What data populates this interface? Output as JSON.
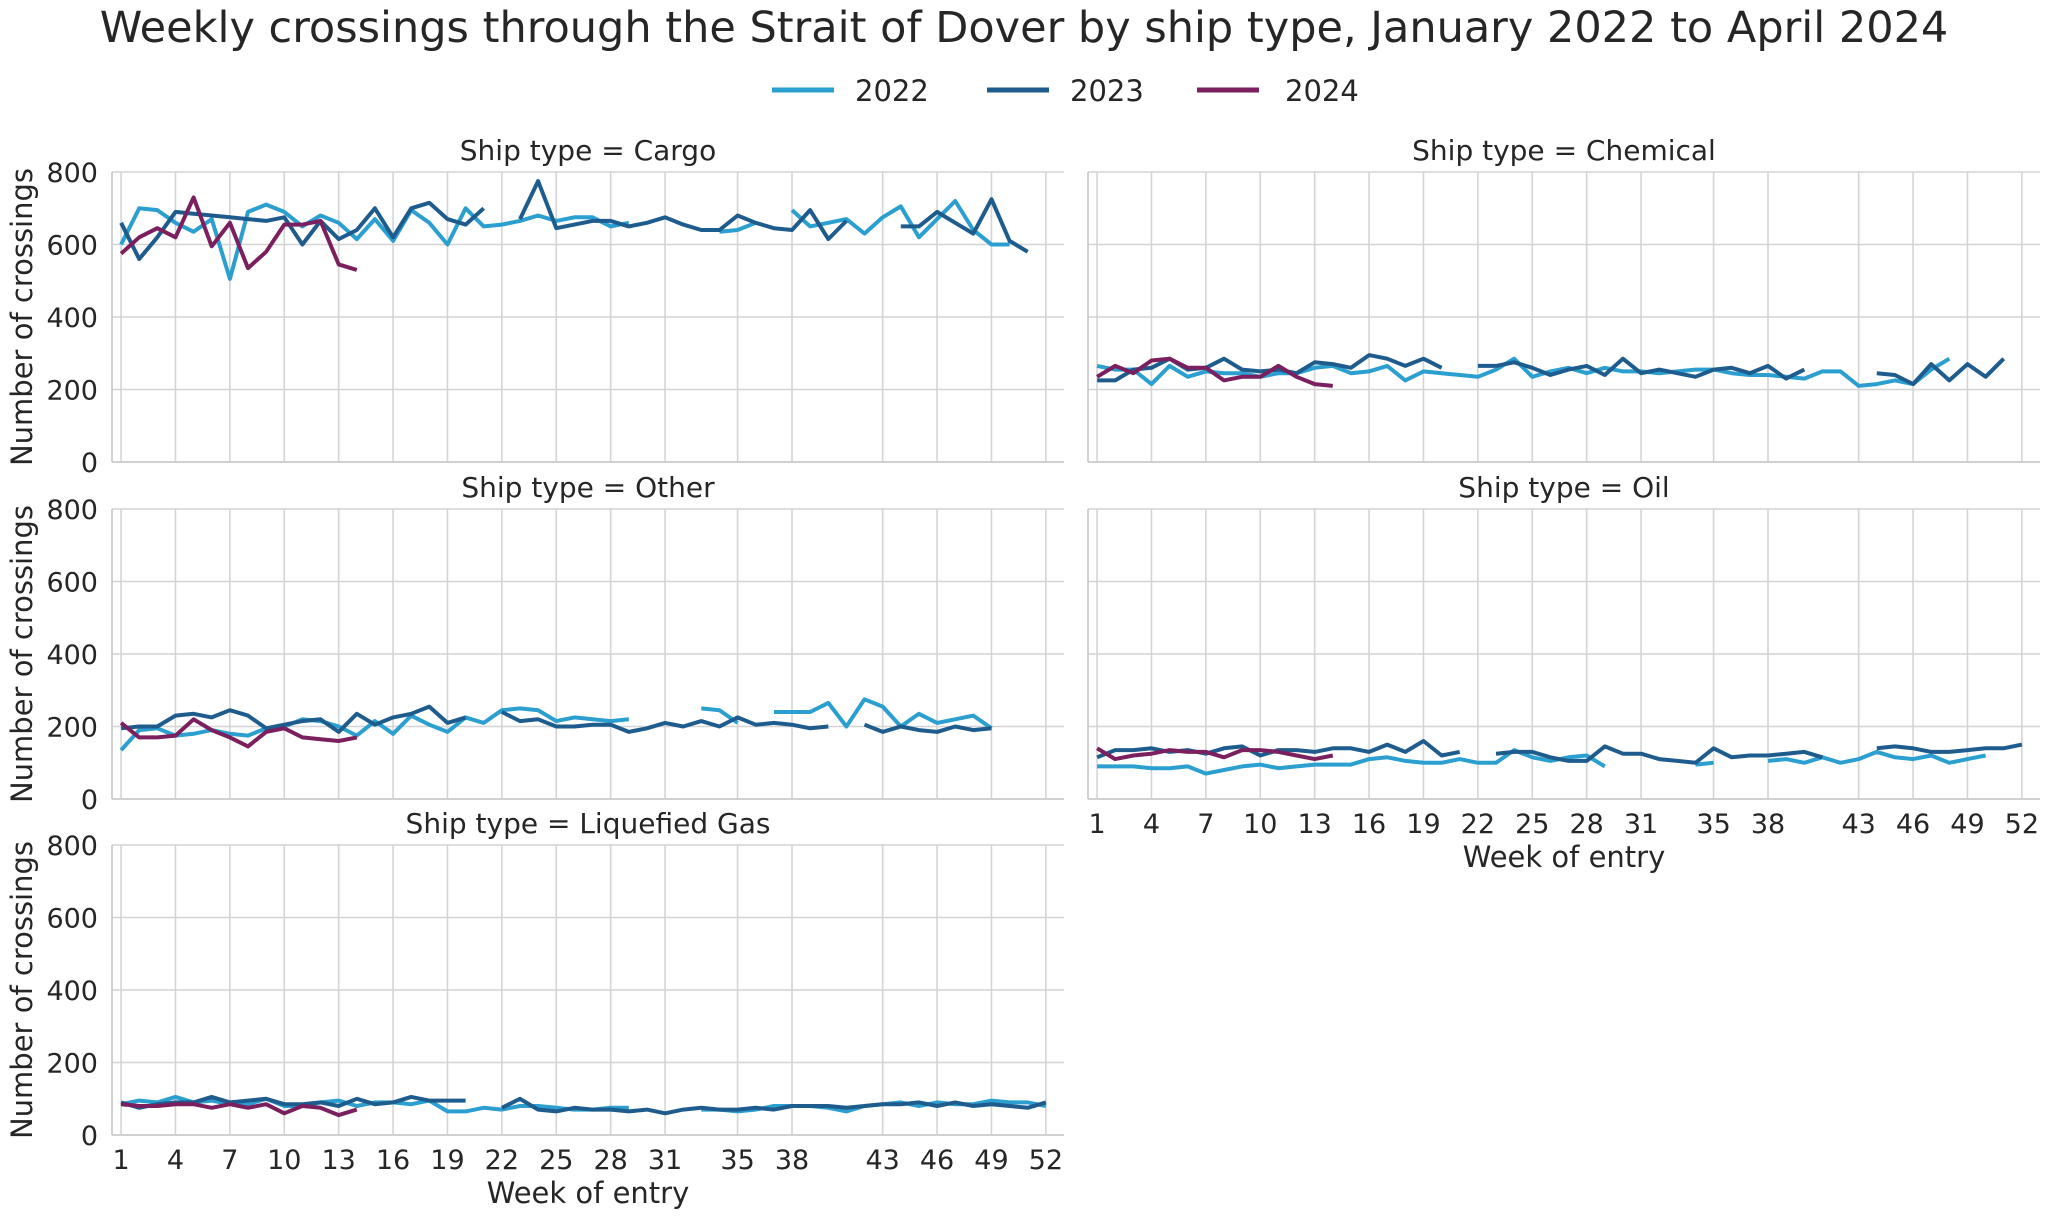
{
  "chart_data": {
    "type": "line",
    "title": "Weekly crossings through the Strait of Dover by ship type, January 2022 to April 2024",
    "xlabel": "Week of entry",
    "ylabel": "Number of crossings",
    "xlim": [
      0.5,
      53
    ],
    "ylim": [
      0,
      800
    ],
    "x_ticks": [
      1,
      4,
      7,
      10,
      13,
      16,
      19,
      22,
      25,
      28,
      31,
      35,
      38,
      43,
      46,
      49,
      52
    ],
    "y_ticks": [
      0,
      200,
      400,
      600,
      800
    ],
    "grid": true,
    "legend_position": "top-center",
    "legend": [
      {
        "name": "2022",
        "color": "#2a9fd0"
      },
      {
        "name": "2023",
        "color": "#1f5c8e"
      },
      {
        "name": "2024",
        "color": "#7b1f5e"
      }
    ],
    "panels": [
      {
        "title": "Ship type = Cargo",
        "series": [
          {
            "name": "2022",
            "values": [
              600,
              700,
              695,
              660,
              635,
              670,
              505,
              690,
              710,
              690,
              650,
              680,
              660,
              615,
              670,
              610,
              695,
              660,
              600,
              700,
              650,
              655,
              665,
              680,
              665,
              675,
              675,
              650,
              660,
              null,
              null,
              null,
              null,
              635,
              640,
              660,
              null,
              695,
              650,
              660,
              670,
              630,
              675,
              705,
              620,
              670,
              720,
              640,
              600,
              600
            ]
          },
          {
            "name": "2023",
            "values": [
              660,
              560,
              620,
              690,
              685,
              680,
              675,
              670,
              665,
              675,
              600,
              665,
              615,
              640,
              700,
              620,
              700,
              715,
              670,
              655,
              700,
              null,
              670,
              775,
              645,
              655,
              665,
              665,
              650,
              660,
              675,
              655,
              640,
              640,
              680,
              660,
              645,
              640,
              695,
              615,
              665,
              null,
              null,
              650,
              650,
              690,
              660,
              630,
              725,
              610,
              580
            ]
          },
          {
            "name": "2024",
            "values": [
              575,
              620,
              645,
              620,
              730,
              595,
              660,
              535,
              580,
              655,
              655,
              665,
              545,
              530
            ]
          }
        ]
      },
      {
        "title": "Ship type = Chemical",
        "series": [
          {
            "name": "2022",
            "values": [
              265,
              255,
              255,
              215,
              265,
              235,
              250,
              245,
              245,
              235,
              245,
              245,
              260,
              265,
              245,
              250,
              265,
              225,
              250,
              245,
              240,
              235,
              255,
              285,
              235,
              250,
              260,
              245,
              260,
              250,
              250,
              245,
              250,
              255,
              255,
              245,
              240,
              240,
              235,
              230,
              250,
              250,
              210,
              215,
              225,
              215,
              255,
              285
            ]
          },
          {
            "name": "2023",
            "values": [
              225,
              225,
              255,
              260,
              285,
              255,
              260,
              285,
              255,
              250,
              255,
              245,
              275,
              270,
              260,
              295,
              285,
              265,
              285,
              260,
              null,
              265,
              265,
              275,
              260,
              240,
              255,
              265,
              240,
              285,
              245,
              255,
              245,
              235,
              255,
              260,
              245,
              265,
              230,
              255,
              null,
              null,
              null,
              245,
              240,
              215,
              270,
              225,
              270,
              235,
              285
            ]
          },
          {
            "name": "2024",
            "values": [
              235,
              265,
              245,
              280,
              285,
              260,
              260,
              225,
              235,
              235,
              265,
              235,
              215,
              210
            ]
          }
        ]
      },
      {
        "title": "Ship type = Other",
        "series": [
          {
            "name": "2022",
            "values": [
              135,
              190,
              195,
              175,
              180,
              190,
              180,
              175,
              195,
              200,
              220,
              215,
              200,
              175,
              215,
              180,
              230,
              205,
              185,
              225,
              210,
              245,
              250,
              245,
              215,
              225,
              220,
              215,
              220,
              null,
              null,
              null,
              250,
              245,
              210,
              null,
              240,
              240,
              240,
              265,
              200,
              275,
              255,
              200,
              235,
              210,
              220,
              230,
              195
            ]
          },
          {
            "name": "2023",
            "values": [
              195,
              200,
              200,
              230,
              235,
              225,
              245,
              230,
              195,
              205,
              215,
              220,
              185,
              235,
              205,
              225,
              235,
              255,
              210,
              225,
              null,
              240,
              215,
              220,
              200,
              200,
              205,
              205,
              185,
              195,
              210,
              200,
              215,
              200,
              225,
              205,
              210,
              205,
              195,
              200,
              null,
              205,
              185,
              200,
              190,
              185,
              200,
              190,
              195
            ]
          },
          {
            "name": "2024",
            "values": [
              210,
              170,
              170,
              175,
              220,
              190,
              170,
              145,
              185,
              195,
              170,
              165,
              160,
              170
            ]
          }
        ]
      },
      {
        "title": "Ship type = Oil",
        "series": [
          {
            "name": "2022",
            "values": [
              90,
              90,
              90,
              85,
              85,
              90,
              70,
              80,
              90,
              95,
              85,
              90,
              95,
              95,
              95,
              110,
              115,
              105,
              100,
              100,
              110,
              100,
              100,
              135,
              115,
              105,
              115,
              120,
              90,
              null,
              null,
              null,
              null,
              95,
              100,
              null,
              null,
              105,
              110,
              100,
              115,
              100,
              110,
              130,
              115,
              110,
              120,
              100,
              110,
              120
            ]
          },
          {
            "name": "2023",
            "values": [
              115,
              135,
              135,
              140,
              130,
              135,
              125,
              140,
              145,
              120,
              135,
              135,
              130,
              140,
              140,
              130,
              150,
              130,
              160,
              120,
              130,
              null,
              125,
              130,
              130,
              115,
              105,
              105,
              145,
              125,
              125,
              110,
              105,
              100,
              140,
              115,
              120,
              120,
              125,
              130,
              115,
              null,
              null,
              140,
              145,
              140,
              130,
              130,
              135,
              140,
              140,
              150
            ]
          },
          {
            "name": "2024",
            "values": [
              140,
              110,
              120,
              125,
              135,
              130,
              130,
              115,
              135,
              135,
              130,
              120,
              110,
              120
            ]
          }
        ]
      },
      {
        "title": "Ship type = Liquefied Gas",
        "series": [
          {
            "name": "2022",
            "values": [
              85,
              95,
              90,
              105,
              90,
              95,
              85,
              85,
              100,
              80,
              80,
              90,
              95,
              80,
              90,
              90,
              85,
              95,
              65,
              65,
              75,
              70,
              80,
              80,
              75,
              70,
              70,
              75,
              75,
              null,
              60,
              null,
              70,
              70,
              65,
              70,
              80,
              80,
              80,
              75,
              65,
              80,
              85,
              90,
              80,
              90,
              85,
              85,
              95,
              90,
              90,
              80
            ]
          },
          {
            "name": "2023",
            "values": [
              90,
              75,
              85,
              90,
              90,
              105,
              90,
              95,
              100,
              85,
              85,
              90,
              80,
              100,
              85,
              90,
              105,
              95,
              95,
              95,
              null,
              75,
              100,
              70,
              65,
              75,
              70,
              70,
              65,
              70,
              60,
              70,
              75,
              70,
              70,
              75,
              70,
              80,
              80,
              80,
              75,
              80,
              85,
              85,
              90,
              80,
              90,
              80,
              85,
              80,
              75,
              90
            ]
          },
          {
            "name": "2024",
            "values": [
              85,
              80,
              80,
              85,
              85,
              75,
              85,
              75,
              85,
              60,
              80,
              75,
              55,
              70
            ]
          }
        ]
      }
    ]
  }
}
